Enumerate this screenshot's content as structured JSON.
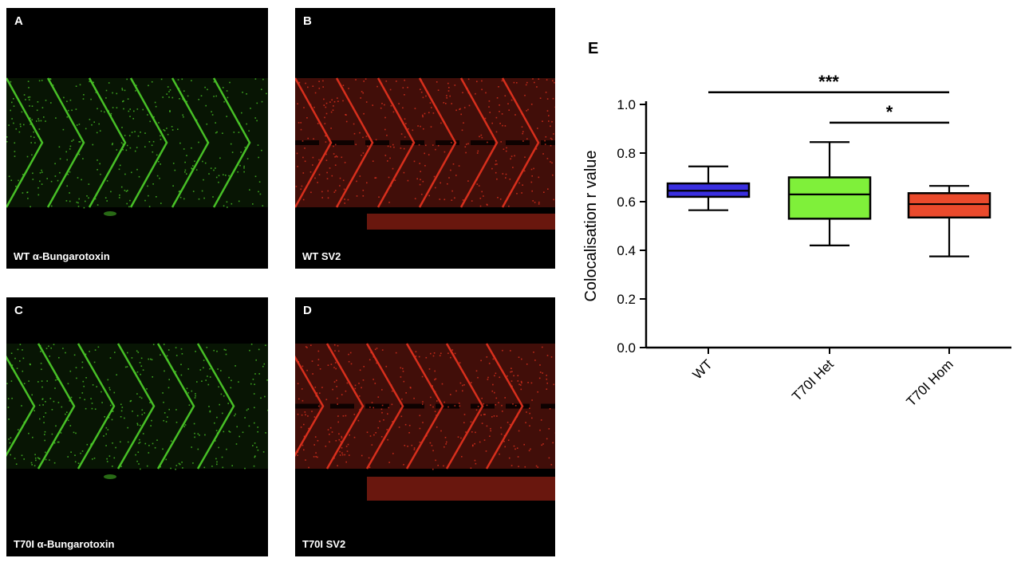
{
  "panels": [
    {
      "letter": "A",
      "caption": "WT α-Bungarotoxin",
      "color": "#4fd12a"
    },
    {
      "letter": "B",
      "caption": "WT SV2",
      "color": "#e8331f"
    },
    {
      "letter": "C",
      "caption": "T70I α-Bungarotoxin",
      "color": "#4fd12a"
    },
    {
      "letter": "D",
      "caption": "T70I SV2",
      "color": "#e8331f"
    }
  ],
  "chart_data": {
    "type": "boxplot",
    "panel_label": "E",
    "ylabel": "Colocalisation r value",
    "ylim": [
      0,
      1.0
    ],
    "yticks": [
      "0.0",
      "0.2",
      "0.4",
      "0.6",
      "0.8",
      "1.0"
    ],
    "categories": [
      "WT",
      "T70I Het",
      "T70I Hom"
    ],
    "boxes": [
      {
        "category": "WT",
        "min": 0.565,
        "q1": 0.62,
        "median": 0.645,
        "q3": 0.675,
        "max": 0.745,
        "color": "#3a2fe0"
      },
      {
        "category": "T70I Het",
        "min": 0.42,
        "q1": 0.53,
        "median": 0.63,
        "q3": 0.7,
        "max": 0.845,
        "color": "#7ff03a"
      },
      {
        "category": "T70I Hom",
        "min": 0.375,
        "q1": 0.535,
        "median": 0.59,
        "q3": 0.635,
        "max": 0.665,
        "color": "#ea4a2c"
      }
    ],
    "significance": [
      {
        "from": "WT",
        "to": "T70I Hom",
        "y": 1.05,
        "label": "***"
      },
      {
        "from": "T70I Het",
        "to": "T70I Hom",
        "y": 0.925,
        "label": "*"
      }
    ]
  }
}
